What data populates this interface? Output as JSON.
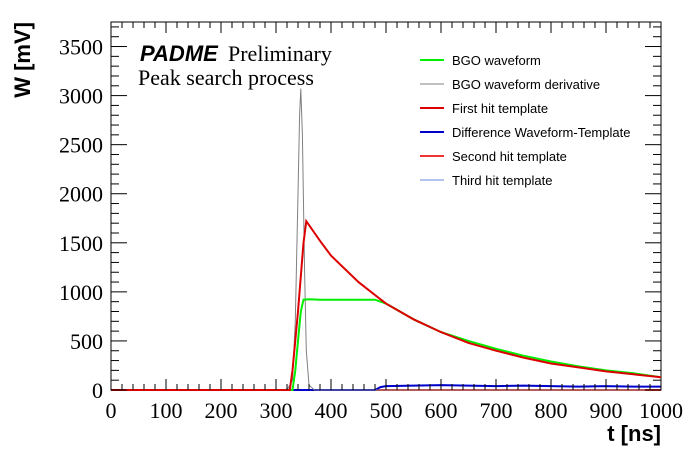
{
  "chart_data": {
    "type": "line",
    "title": "",
    "xlabel": "t [ns]",
    "ylabel": "W [mV]",
    "xlim": [
      0,
      1000
    ],
    "ylim": [
      0,
      3750
    ],
    "x_ticks": [
      0,
      100,
      200,
      300,
      400,
      500,
      600,
      700,
      800,
      900,
      1000
    ],
    "y_ticks": [
      0,
      500,
      1000,
      1500,
      2000,
      2500,
      3000,
      3500
    ],
    "annotations": {
      "brand": "PADME",
      "status": "Preliminary",
      "subtitle": "Peak search process"
    },
    "legend_position": "top-right",
    "grid": false,
    "series": [
      {
        "name": "BGO waveform",
        "color": "#00ee00",
        "x": [
          0,
          320,
          330,
          335,
          340,
          345,
          350,
          360,
          380,
          400,
          450,
          480,
          500,
          550,
          600,
          650,
          700,
          750,
          800,
          850,
          900,
          950,
          1000
        ],
        "y": [
          0,
          0,
          0,
          200,
          500,
          800,
          920,
          925,
          920,
          920,
          920,
          920,
          880,
          720,
          590,
          500,
          420,
          350,
          290,
          240,
          200,
          170,
          130
        ]
      },
      {
        "name": "BGO waveform derivative",
        "color": "#808080",
        "x": [
          0,
          320,
          330,
          335,
          340,
          343,
          345,
          348,
          352,
          355,
          360,
          370,
          1000
        ],
        "y": [
          0,
          0,
          100,
          700,
          2000,
          2800,
          3070,
          2600,
          1200,
          400,
          50,
          0,
          0
        ]
      },
      {
        "name": "First hit template",
        "color": "#dd0000",
        "x": [
          0,
          325,
          330,
          340,
          350,
          355,
          360,
          380,
          400,
          450,
          500,
          550,
          600,
          650,
          700,
          750,
          800,
          850,
          900,
          950,
          1000
        ],
        "y": [
          0,
          0,
          200,
          800,
          1500,
          1720,
          1680,
          1520,
          1370,
          1100,
          880,
          720,
          590,
          480,
          400,
          330,
          270,
          230,
          190,
          160,
          130
        ]
      },
      {
        "name": "Difference Waveform-Template",
        "color": "#0000cc",
        "x": [
          0,
          480,
          490,
          500,
          550,
          600,
          650,
          700,
          750,
          800,
          850,
          900,
          950,
          1000
        ],
        "y": [
          0,
          0,
          30,
          40,
          45,
          50,
          45,
          40,
          45,
          40,
          35,
          40,
          35,
          35
        ]
      },
      {
        "name": "Second hit template",
        "color": "#ee3333",
        "x": [
          0,
          1000
        ],
        "y": [
          0,
          0
        ]
      },
      {
        "name": "Third hit template",
        "color": "#6688dd",
        "x": [
          0,
          1000
        ],
        "y": [
          0,
          0
        ]
      }
    ]
  }
}
